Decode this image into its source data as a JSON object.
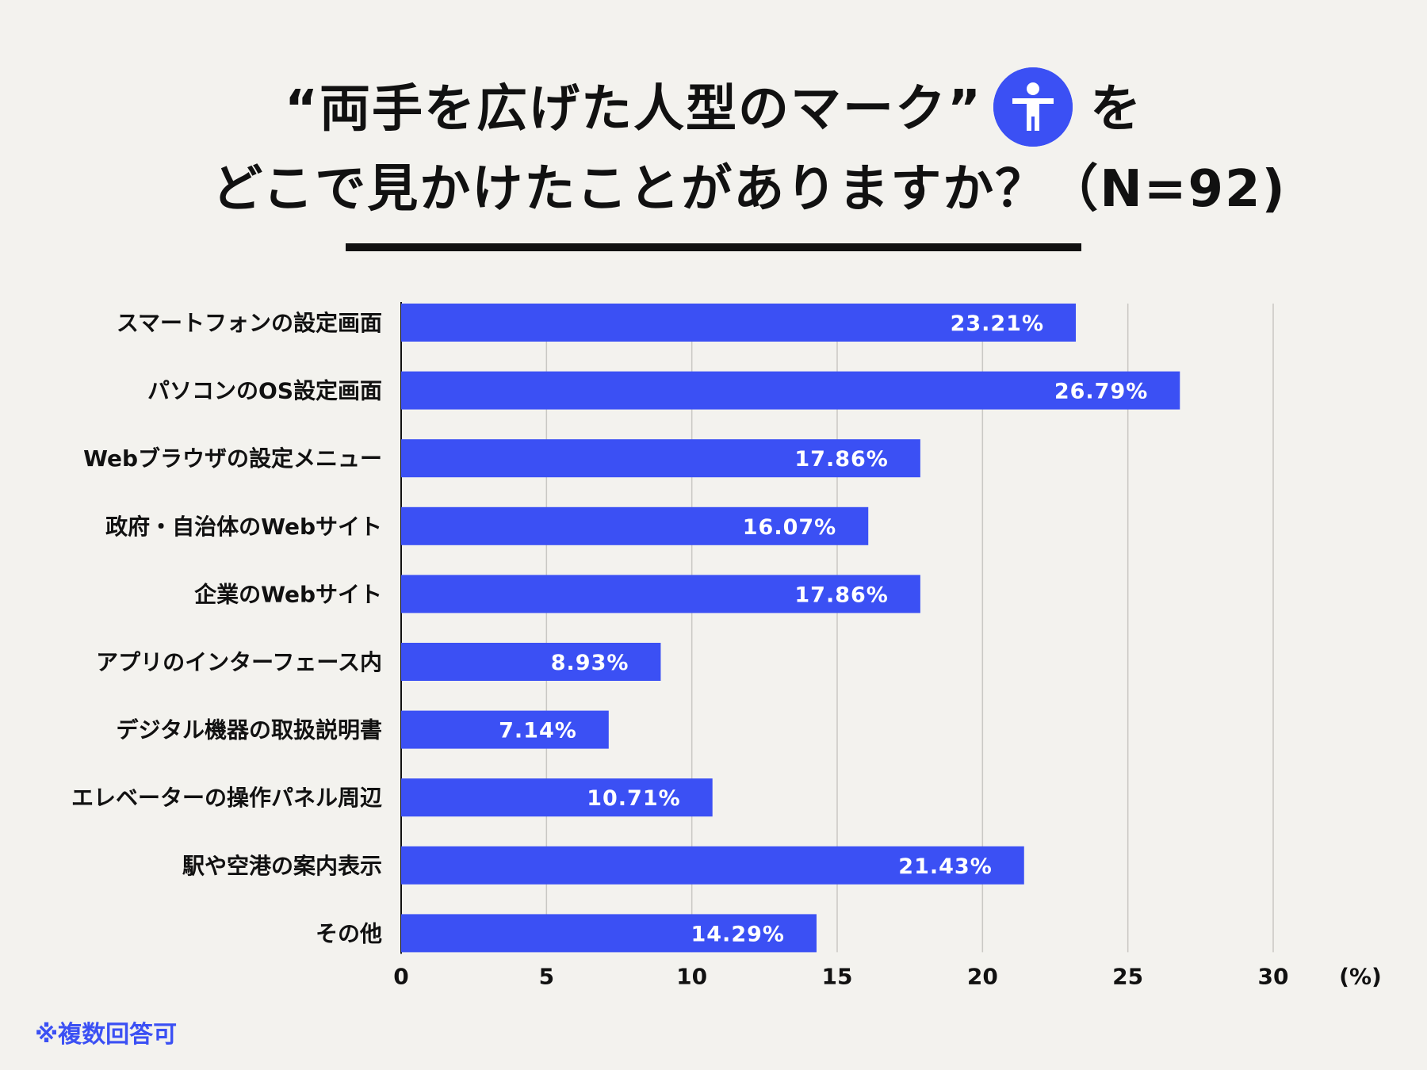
{
  "title": {
    "line1_quote": "“両手を広げた人型のマーク”",
    "line1_suffix": "を",
    "line2": "どこで見かけたことがありますか？（N=92)"
  },
  "colors": {
    "bar": "#3b50f4",
    "background": "#f3f2ee",
    "text": "#111111"
  },
  "footnote": "※複数回答可",
  "chart_data": {
    "type": "bar",
    "orientation": "horizontal",
    "categories": [
      "スマートフォンの設定画面",
      "パソコンのOS設定画面",
      "Webブラウザの設定メニュー",
      "政府・自治体のWebサイト",
      "企業のWebサイト",
      "アプリのインターフェース内",
      "デジタル機器の取扱説明書",
      "エレベーターの操作パネル周辺",
      "駅や空港の案内表示",
      "その他"
    ],
    "values": [
      23.21,
      26.79,
      17.86,
      16.07,
      17.86,
      8.93,
      7.14,
      10.71,
      21.43,
      14.29
    ],
    "value_labels": [
      "23.21%",
      "26.79%",
      "17.86%",
      "16.07%",
      "17.86%",
      "8.93%",
      "7.14%",
      "10.71%",
      "21.43%",
      "14.29%"
    ],
    "xlim": [
      0,
      30
    ],
    "xticks": [
      "0",
      "5",
      "10",
      "15",
      "20",
      "25",
      "30"
    ],
    "xlabel": "(%)",
    "grid": true
  }
}
